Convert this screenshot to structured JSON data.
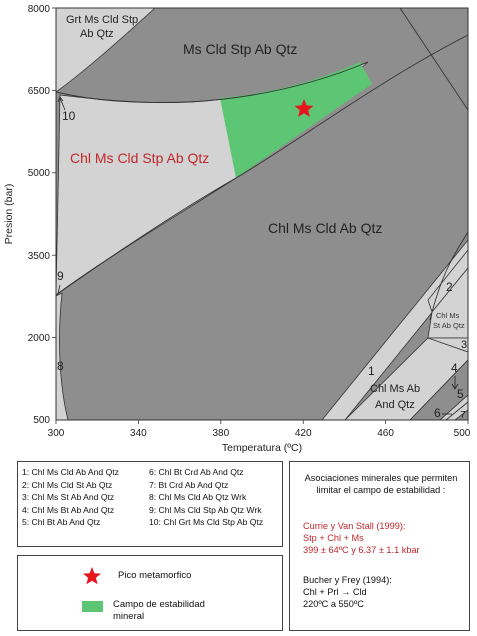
{
  "colors": {
    "dark_field": "#8e8e8e",
    "light_field": "#d3d3d3",
    "green_field": "#5cc674",
    "star": "#e8141c",
    "red_text": "#c0282d"
  },
  "axes": {
    "x_label": "Temperatura (ºC)",
    "y_label": "Presion (bar)",
    "x_ticks": [
      "300",
      "340",
      "380",
      "420",
      "460",
      "500"
    ],
    "y_ticks": [
      "8000",
      "6500",
      "5000",
      "3500",
      "2000",
      "500"
    ]
  },
  "fields": {
    "grt_line1": "Grt Ms Cld Stp",
    "grt_line2": "Ab Qtz",
    "ms_cld": "Ms Cld Stp Ab Qtz",
    "chl_ms_cld_stp": "Chl Ms Cld Stp Ab Qtz",
    "chl_ms_cld_ab": "Chl Ms Cld Ab Qtz",
    "chl_ms_st_line1": "Chl Ms",
    "chl_ms_st_line2": "St Ab Qtz",
    "chl_ms_ab_line1": "Chl Ms Ab",
    "chl_ms_ab_line2": "And Qtz"
  },
  "field_numbers": [
    "1",
    "2",
    "3",
    "4",
    "5",
    "6",
    "7",
    "8",
    "9",
    "10"
  ],
  "legend_items": [
    "1: Chl Ms Cld Ab And Qtz",
    "2: Chl Ms Cld St Ab Qtz",
    "3: Chl Ms St Ab And Qtz",
    "4: Chl Ms Bt Ab And Qtz",
    "5: Chl Bt Ab And Qtz",
    "6: Chl Bt Crd Ab And Qtz",
    "7: Bt Crd Ab And Qtz",
    "8: Chl Ms Cld Ab Qtz Wrk",
    "9: Chl Ms Cld Stp Ab Qtz Wrk",
    "10: Chl Grt Ms Cld Stp Ab Qtz"
  ],
  "symbols": {
    "peak_label": "Pico metamorfico",
    "field_label_line1": "Campo de estabilidad",
    "field_label_line2": "mineral"
  },
  "associations": {
    "title_line1": "Asociaciones minerales que permiten",
    "title_line2": "limitar el campo de estabilidad :",
    "ref1_title": "Currie y Van Stall (1999):",
    "ref1_assemblage": "Stp + Chl + Ms",
    "ref1_conditions": "399 ± 64ºC y 6.37 ± 1.1 kbar",
    "ref2_title": "Bucher y Frey (1994):",
    "ref2_reaction_left": "Chl + Prl",
    "ref2_reaction_right": "Cld",
    "ref2_range": "220ºC a 550ºC"
  }
}
